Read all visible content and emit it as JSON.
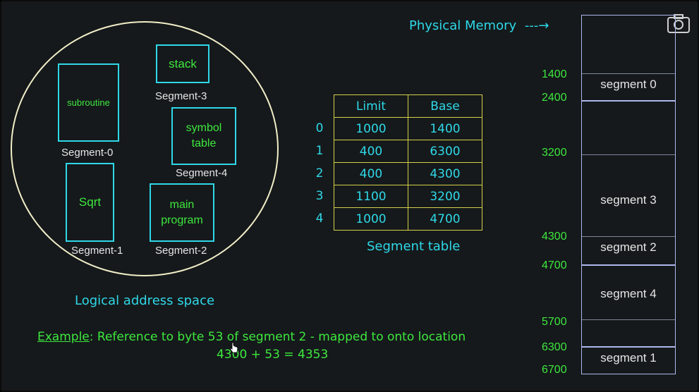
{
  "header": {
    "physical_memory_label": "Physical Memory",
    "arrow": "---→"
  },
  "logical": {
    "caption": "Logical address space",
    "segments": [
      {
        "box": "subroutine",
        "label": "Segment-0"
      },
      {
        "box": "Sqrt",
        "label": "Segment-1"
      },
      {
        "box": "main\nprogram",
        "label": "Segment-2"
      },
      {
        "box": "stack",
        "label": "Segment-3"
      },
      {
        "box": "symbol\ntable",
        "label": "Segment-4"
      }
    ]
  },
  "segment_table": {
    "caption": "Segment table",
    "columns": [
      "Limit",
      "Base"
    ],
    "rows": [
      {
        "index": "0",
        "limit": "1000",
        "base": "1400"
      },
      {
        "index": "1",
        "limit": "400",
        "base": "6300"
      },
      {
        "index": "2",
        "limit": "400",
        "base": "4300"
      },
      {
        "index": "3",
        "limit": "1100",
        "base": "3200"
      },
      {
        "index": "4",
        "limit": "1000",
        "base": "4700"
      }
    ]
  },
  "physical_memory": {
    "addresses": [
      "1400",
      "2400",
      "3200",
      "4300",
      "4700",
      "5700",
      "6300",
      "6700"
    ],
    "segments": [
      "segment 0",
      "segment 3",
      "segment 2",
      "segment 4",
      "segment 1"
    ]
  },
  "example": {
    "label": "Example",
    "text": ": Reference to byte 53 of segment 2 - mapped to onto location",
    "equation": "4300 + 53 = 4353"
  },
  "icons": {
    "camera": "camera-icon",
    "cursor": "mouse-cursor-icon"
  }
}
